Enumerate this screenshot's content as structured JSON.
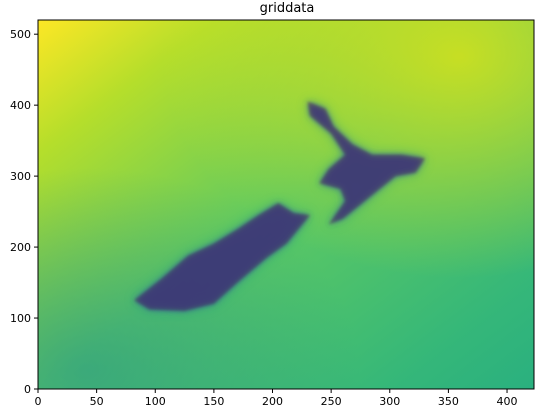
{
  "chart_data": {
    "type": "heatmap",
    "title": "griddata",
    "xlabel": "",
    "ylabel": "",
    "xlim": [
      0,
      423
    ],
    "ylim": [
      0,
      520
    ],
    "x_ticks": [
      0,
      50,
      100,
      150,
      200,
      250,
      300,
      350,
      400
    ],
    "y_ticks": [
      0,
      100,
      200,
      300,
      400,
      500
    ],
    "colormap": "viridis",
    "grid": false,
    "colormap_stops": [
      "#440154",
      "#3b528b",
      "#21918c",
      "#5ec962",
      "#fde725"
    ],
    "features": [
      {
        "name": "north-island",
        "level": "low",
        "path": [
          [
            230,
            405
          ],
          [
            245,
            395
          ],
          [
            252,
            370
          ],
          [
            268,
            345
          ],
          [
            285,
            330
          ],
          [
            310,
            330
          ],
          [
            330,
            325
          ],
          [
            322,
            305
          ],
          [
            305,
            300
          ],
          [
            290,
            280
          ],
          [
            275,
            260
          ],
          [
            260,
            240
          ],
          [
            248,
            232
          ],
          [
            262,
            265
          ],
          [
            258,
            282
          ],
          [
            240,
            290
          ],
          [
            248,
            310
          ],
          [
            262,
            330
          ],
          [
            250,
            360
          ],
          [
            232,
            385
          ]
        ]
      },
      {
        "name": "south-island",
        "level": "low",
        "path": [
          [
            232,
            245
          ],
          [
            218,
            248
          ],
          [
            205,
            262
          ],
          [
            188,
            245
          ],
          [
            170,
            225
          ],
          [
            150,
            205
          ],
          [
            128,
            188
          ],
          [
            105,
            155
          ],
          [
            82,
            125
          ],
          [
            95,
            112
          ],
          [
            125,
            110
          ],
          [
            150,
            120
          ],
          [
            170,
            150
          ],
          [
            195,
            185
          ],
          [
            212,
            205
          ]
        ]
      }
    ]
  }
}
